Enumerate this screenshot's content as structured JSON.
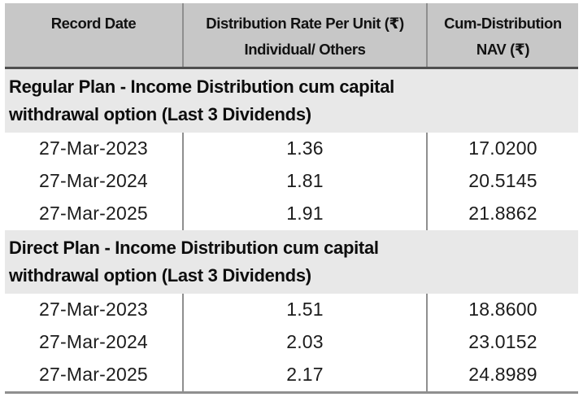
{
  "table": {
    "header": {
      "record_date": "Record Date",
      "rate_line1": "Distribution Rate Per Unit (₹)",
      "rate_line2": "Individual/ Others",
      "nav_line1": "Cum-Distribution",
      "nav_line2": "NAV (₹)"
    },
    "currency_symbol": "₹",
    "sections": [
      {
        "title_line1": "Regular Plan - Income Distribution cum capital",
        "title_line2": "withdrawal option (Last 3 Dividends)",
        "rows": [
          {
            "record_date": "27-Mar-2023",
            "rate": "1.36",
            "nav": "17.0200"
          },
          {
            "record_date": "27-Mar-2024",
            "rate": "1.81",
            "nav": "20.5145"
          },
          {
            "record_date": "27-Mar-2025",
            "rate": "1.91",
            "nav": "21.8862"
          }
        ]
      },
      {
        "title_line1": "Direct Plan - Income Distribution cum capital",
        "title_line2": "withdrawal option (Last 3 Dividends)",
        "rows": [
          {
            "record_date": "27-Mar-2023",
            "rate": "1.51",
            "nav": "18.8600"
          },
          {
            "record_date": "27-Mar-2024",
            "rate": "2.03",
            "nav": "23.0152"
          },
          {
            "record_date": "27-Mar-2025",
            "rate": "2.17",
            "nav": "24.8989"
          }
        ]
      }
    ],
    "colors": {
      "header_bg": "#c7c7c7",
      "section_bg": "#e8e8e8",
      "separator": "#8f8f8f",
      "header_rule": "#4f4f4f",
      "bottom_rule": "#8f8f8f",
      "text": "#121212"
    }
  }
}
